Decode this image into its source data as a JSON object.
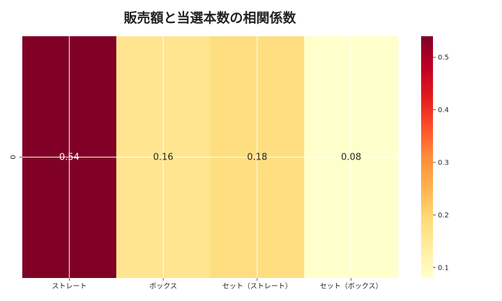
{
  "chart_data": {
    "type": "heatmap",
    "title": "販売額と当選本数の相関係数",
    "columns": [
      "ストレート",
      "ボックス",
      "セット（ストレート）",
      "セット（ボックス）"
    ],
    "rows": [
      "0"
    ],
    "values": [
      [
        0.54,
        0.16,
        0.18,
        0.08
      ]
    ],
    "value_labels": [
      [
        "0.54",
        "0.16",
        "0.18",
        "0.08"
      ]
    ],
    "colormap": "YlOrRd",
    "color_range": [
      0.08,
      0.54
    ],
    "colorbar_ticks": [
      "0.1",
      "0.2",
      "0.3",
      "0.4",
      "0.5"
    ],
    "colorbar_tick_values": [
      0.1,
      0.2,
      0.3,
      0.4,
      0.5
    ],
    "grid": true,
    "grid_color": "#ffffff"
  }
}
